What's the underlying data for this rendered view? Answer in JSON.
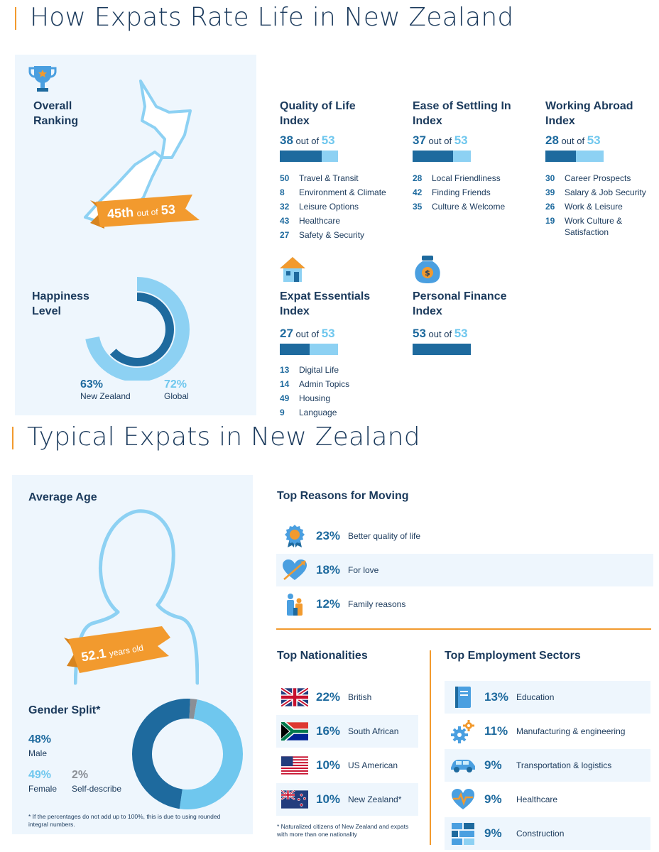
{
  "section1": {
    "title": "How Expats Rate Life in New Zealand"
  },
  "overall": {
    "label_line1": "Overall",
    "label_line2": "Ranking",
    "rank": "45th",
    "out_of": "out of",
    "total": "53"
  },
  "happiness": {
    "label_line1": "Happiness",
    "label_line2": "Level",
    "nz_value": "63%",
    "nz_label": "New Zealand",
    "global_value": "72%",
    "global_label": "Global",
    "nz_fraction": 0.63,
    "global_fraction": 0.72
  },
  "indices": [
    {
      "title_line1": "Quality of Life",
      "title_line2": "Index",
      "rank": "38",
      "out_of": "out of",
      "total": "53",
      "fill": 0.717,
      "items": [
        {
          "rank": "50",
          "label": "Travel & Transit"
        },
        {
          "rank": "8",
          "label": "Environment & Climate"
        },
        {
          "rank": "32",
          "label": "Leisure Options"
        },
        {
          "rank": "43",
          "label": "Healthcare"
        },
        {
          "rank": "27",
          "label": "Safety & Security"
        }
      ]
    },
    {
      "title_line1": "Ease of Settling In",
      "title_line2": "Index",
      "rank": "37",
      "out_of": "out of",
      "total": "53",
      "fill": 0.698,
      "items": [
        {
          "rank": "28",
          "label": "Local Friendliness"
        },
        {
          "rank": "42",
          "label": "Finding Friends"
        },
        {
          "rank": "35",
          "label": "Culture & Welcome"
        }
      ]
    },
    {
      "title_line1": "Working Abroad",
      "title_line2": "Index",
      "rank": "28",
      "out_of": "out of",
      "total": "53",
      "fill": 0.528,
      "items": [
        {
          "rank": "30",
          "label": "Career Prospects"
        },
        {
          "rank": "39",
          "label": "Salary & Job Security"
        },
        {
          "rank": "26",
          "label": "Work & Leisure"
        },
        {
          "rank": "19",
          "label": "Work Culture &"
        },
        {
          "rank": "",
          "label": "Satisfaction"
        }
      ]
    },
    {
      "title_line1": "Expat Essentials",
      "title_line2": "Index",
      "rank": "27",
      "out_of": "out of",
      "total": "53",
      "fill": 0.509,
      "items": [
        {
          "rank": "13",
          "label": "Digital Life"
        },
        {
          "rank": "14",
          "label": "Admin Topics"
        },
        {
          "rank": "49",
          "label": "Housing"
        },
        {
          "rank": "9",
          "label": "Language"
        }
      ]
    },
    {
      "title_line1": "Personal Finance",
      "title_line2": "Index",
      "rank": "53",
      "out_of": "out of",
      "total": "53",
      "fill": 1.0,
      "items": []
    }
  ],
  "section2": {
    "title": "Typical Expats in New Zealand"
  },
  "age": {
    "label": "Average Age",
    "value": "52.1",
    "unit": "years old"
  },
  "gender": {
    "label": "Gender Split*",
    "male_value": "48%",
    "male_label": "Male",
    "female_value": "49%",
    "female_label": "Female",
    "self_value": "2%",
    "self_label": "Self-describe",
    "male_fraction": 0.48,
    "female_fraction": 0.49,
    "self_fraction": 0.02,
    "note": "* If the percentages do not add up to 100%, this is due to using rounded integral numbers."
  },
  "reasons": {
    "title": "Top Reasons for Moving",
    "items": [
      {
        "pct": "23%",
        "label": "Better quality of life",
        "icon": "ribbon-badge-icon"
      },
      {
        "pct": "18%",
        "label": "For love",
        "icon": "heart-arrow-icon"
      },
      {
        "pct": "12%",
        "label": "Family reasons",
        "icon": "family-icon"
      }
    ]
  },
  "nationalities": {
    "title": "Top Nationalities",
    "items": [
      {
        "pct": "22%",
        "label": "British",
        "icon": "uk-flag-icon"
      },
      {
        "pct": "16%",
        "label": "South African",
        "icon": "south-africa-flag-icon"
      },
      {
        "pct": "10%",
        "label": "US American",
        "icon": "us-flag-icon"
      },
      {
        "pct": "10%",
        "label": "New Zealand*",
        "icon": "nz-flag-icon"
      }
    ],
    "note": "* Naturalized citizens of New Zealand and expats with more than one nationality"
  },
  "sectors": {
    "title": "Top Employment Sectors",
    "items": [
      {
        "pct": "13%",
        "label": "Education",
        "icon": "book-icon"
      },
      {
        "pct": "11%",
        "label": "Manufacturing & engineering",
        "icon": "gears-icon"
      },
      {
        "pct": "9%",
        "label": "Transportation & logistics",
        "icon": "car-icon"
      },
      {
        "pct": "9%",
        "label": "Healthcare",
        "icon": "heartbeat-icon"
      },
      {
        "pct": "9%",
        "label": "Construction",
        "icon": "bricks-icon"
      }
    ]
  },
  "colors": {
    "navy": "#1b3a5c",
    "dark_blue": "#1e6a9e",
    "light_blue": "#8dd1f3",
    "orange": "#f29a2e",
    "panel": "#eef6fd"
  }
}
